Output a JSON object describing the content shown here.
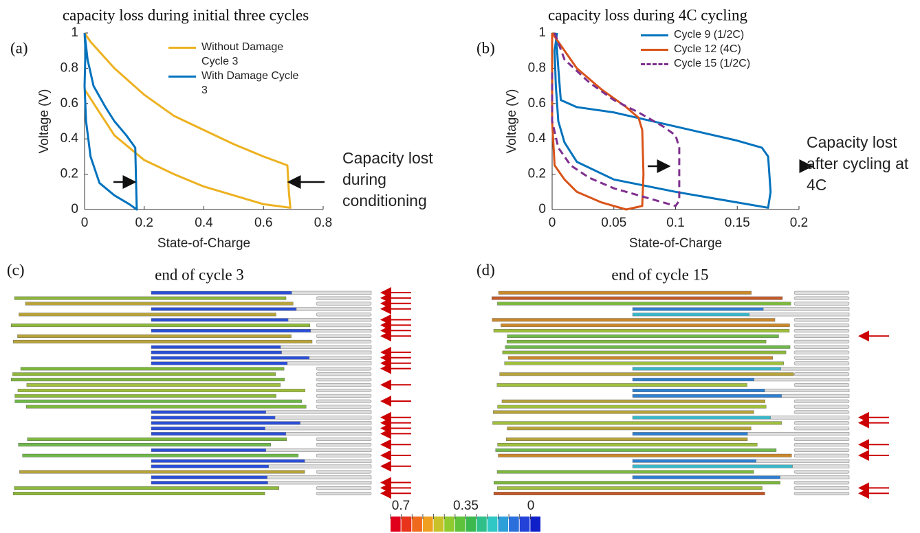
{
  "chart_data": [
    {
      "type": "line",
      "panel_label": "(a)",
      "title": "capacity loss during initial three cycles",
      "x_label": "State-of-Charge",
      "y_label": "Voltage (V)",
      "xlim": [
        0,
        0.8
      ],
      "xticks": [
        0,
        0.2,
        0.4,
        0.6,
        0.8
      ],
      "ylim": [
        0,
        1
      ],
      "yticks": [
        0,
        0.2,
        0.4,
        0.6,
        0.8,
        1
      ],
      "annotation": "Capacity lost during conditioning",
      "series": [
        {
          "name": "Without Damage Cycle 3",
          "color": "#EDB120",
          "x": [
            0,
            0.02,
            0.1,
            0.2,
            0.3,
            0.4,
            0.5,
            0.6,
            0.68,
            0.685,
            0.69,
            0.6,
            0.5,
            0.4,
            0.3,
            0.2,
            0.1,
            0.05,
            0
          ],
          "values": [
            1,
            0.95,
            0.8,
            0.65,
            0.53,
            0.45,
            0.37,
            0.3,
            0.25,
            0.1,
            0.01,
            0.03,
            0.08,
            0.13,
            0.2,
            0.28,
            0.42,
            0.55,
            0.68
          ]
        },
        {
          "name": "With Damage Cycle 3",
          "color": "#0072BD",
          "x": [
            0,
            0.01,
            0.03,
            0.07,
            0.1,
            0.14,
            0.17,
            0.172,
            0.175,
            0.15,
            0.1,
            0.05,
            0.02,
            0.005,
            0,
            0.003,
            0
          ],
          "values": [
            1,
            0.85,
            0.7,
            0.58,
            0.5,
            0.42,
            0.35,
            0.2,
            0,
            0.03,
            0.08,
            0.15,
            0.3,
            0.5,
            0.7,
            0.9,
            1
          ]
        }
      ]
    },
    {
      "type": "line",
      "panel_label": "(b)",
      "title": "capacity loss during 4C cycling",
      "x_label": "State-of-Charge",
      "y_label": "Voltage (V)",
      "xlim": [
        0,
        0.2
      ],
      "xticks": [
        0,
        0.05,
        0.1,
        0.15,
        0.2
      ],
      "ylim": [
        0,
        1
      ],
      "yticks": [
        0,
        0.2,
        0.4,
        0.6,
        0.8,
        1
      ],
      "annotation": "Capacity lost after cycling at 4C",
      "series": [
        {
          "name": "Cycle 9 (1/2C)",
          "color": "#0072BD",
          "dashed": false,
          "x": [
            0.003,
            0.005,
            0.007,
            0.02,
            0.05,
            0.1,
            0.15,
            0.17,
            0.175,
            0.177,
            0.175,
            0.15,
            0.1,
            0.05,
            0.02,
            0.01,
            0.005,
            0.003,
            0.002,
            0.004
          ],
          "values": [
            1,
            0.8,
            0.62,
            0.58,
            0.55,
            0.47,
            0.39,
            0.35,
            0.3,
            0.1,
            0.01,
            0.04,
            0.1,
            0.17,
            0.27,
            0.38,
            0.5,
            0.7,
            0.9,
            1
          ]
        },
        {
          "name": "Cycle 12 (4C)",
          "color": "#D95319",
          "dashed": false,
          "x": [
            0,
            0.005,
            0.02,
            0.04,
            0.06,
            0.07,
            0.073,
            0.074,
            0.073,
            0.06,
            0.04,
            0.02,
            0.01,
            0.002,
            0,
            0
          ],
          "values": [
            1,
            0.95,
            0.8,
            0.68,
            0.58,
            0.52,
            0.45,
            0.2,
            0.02,
            0,
            0.04,
            0.1,
            0.17,
            0.25,
            0.5,
            1
          ]
        },
        {
          "name": "Cycle 15 (1/2C)",
          "color": "#7E2F8E",
          "dashed": true,
          "x": [
            0.002,
            0.01,
            0.03,
            0.05,
            0.07,
            0.09,
            0.1,
            0.103,
            0.103,
            0.1,
            0.08,
            0.05,
            0.03,
            0.015,
            0.005,
            0,
            0
          ],
          "values": [
            1,
            0.85,
            0.72,
            0.62,
            0.55,
            0.47,
            0.42,
            0.35,
            0.05,
            0.02,
            0.06,
            0.12,
            0.18,
            0.25,
            0.35,
            0.5,
            0.8
          ]
        }
      ]
    }
  ],
  "panels": {
    "c": {
      "label": "(c)",
      "title": "end of cycle 3"
    },
    "d": {
      "label": "(d)",
      "title": "end of cycle 15"
    },
    "colorbar": {
      "clim": [
        0.7,
        0
      ],
      "ticks": [
        0.7,
        0.35,
        0
      ]
    }
  }
}
